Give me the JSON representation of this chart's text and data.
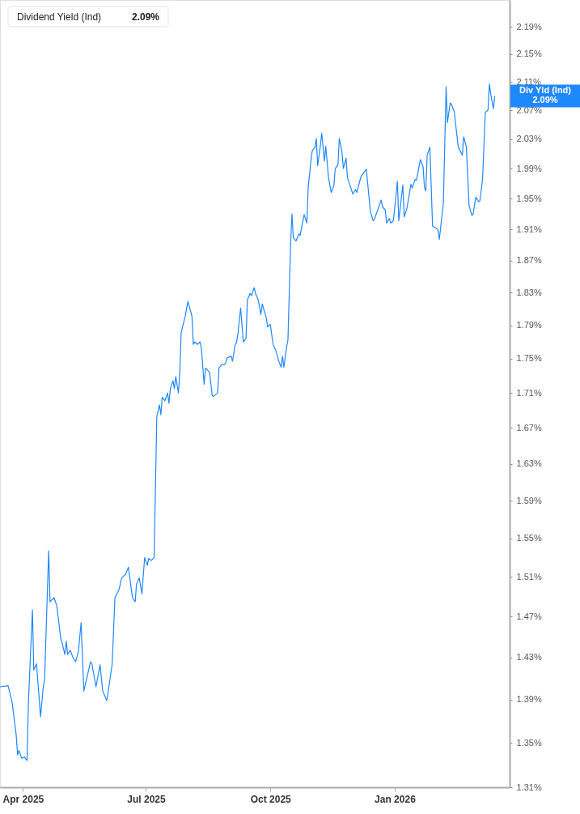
{
  "chart_data": {
    "type": "line",
    "title": "Dividend Yield (Ind)",
    "subtitle": "2.09%",
    "x": [
      "2025-03-15",
      "2025-03-21",
      "2025-03-24",
      "2025-03-27",
      "2025-03-28",
      "2025-03-29",
      "2025-03-31",
      "2025-04-02",
      "2025-04-04",
      "2025-04-05",
      "2025-04-08",
      "2025-04-09",
      "2025-04-11",
      "2025-04-14",
      "2025-04-16",
      "2025-04-17",
      "2025-04-20",
      "2025-04-21",
      "2025-04-24",
      "2025-04-26",
      "2025-04-29",
      "2025-04-30",
      "2025-05-02",
      "2025-05-03",
      "2025-05-04",
      "2025-05-06",
      "2025-05-08",
      "2025-05-10",
      "2025-05-12",
      "2025-05-14",
      "2025-05-16",
      "2025-05-18",
      "2025-05-21",
      "2025-05-22",
      "2025-05-25",
      "2025-05-28",
      "2025-05-30",
      "2025-06-02",
      "2025-06-04",
      "2025-06-06",
      "2025-06-08",
      "2025-06-11",
      "2025-06-13",
      "2025-06-16",
      "2025-06-18",
      "2025-06-21",
      "2025-06-23",
      "2025-06-24",
      "2025-06-26",
      "2025-06-28",
      "2025-06-30",
      "2025-07-02",
      "2025-07-03",
      "2025-07-05",
      "2025-07-07",
      "2025-07-09",
      "2025-07-11",
      "2025-07-12",
      "2025-07-13",
      "2025-07-15",
      "2025-07-17",
      "2025-07-18",
      "2025-07-19",
      "2025-07-21",
      "2025-07-22",
      "2025-07-23",
      "2025-07-25",
      "2025-07-26",
      "2025-07-27",
      "2025-07-30",
      "2025-08-01",
      "2025-08-04",
      "2025-08-05",
      "2025-08-06",
      "2025-08-08",
      "2025-08-10",
      "2025-08-11",
      "2025-08-13",
      "2025-08-14",
      "2025-08-17",
      "2025-08-19",
      "2025-08-20",
      "2025-08-23",
      "2025-08-24",
      "2025-08-26",
      "2025-08-28",
      "2025-08-29",
      "2025-08-30",
      "2025-09-02",
      "2025-09-03",
      "2025-09-05",
      "2025-09-06",
      "2025-09-07",
      "2025-09-09",
      "2025-09-11",
      "2025-09-13",
      "2025-09-14",
      "2025-09-16",
      "2025-09-17",
      "2025-09-19",
      "2025-09-20",
      "2025-09-22",
      "2025-09-24",
      "2025-09-25",
      "2025-09-28",
      "2025-09-29",
      "2025-10-01",
      "2025-10-03",
      "2025-10-05",
      "2025-10-07",
      "2025-10-09",
      "2025-10-10",
      "2025-10-11",
      "2025-10-13",
      "2025-10-14",
      "2025-10-16",
      "2025-10-17",
      "2025-10-18",
      "2025-10-20",
      "2025-10-22",
      "2025-10-23",
      "2025-10-26",
      "2025-10-28",
      "2025-10-29",
      "2025-10-31",
      "2025-11-01",
      "2025-11-03",
      "2025-11-04",
      "2025-11-05",
      "2025-11-07",
      "2025-11-08",
      "2025-11-10",
      "2025-11-11",
      "2025-11-13",
      "2025-11-15",
      "2025-11-17",
      "2025-11-18",
      "2025-11-20",
      "2025-11-21",
      "2025-11-23",
      "2025-11-24",
      "2025-11-26",
      "2025-11-27",
      "2025-12-01",
      "2025-12-03",
      "2025-12-04",
      "2025-12-07",
      "2025-12-11",
      "2025-12-14",
      "2025-12-16",
      "2025-12-17",
      "2025-12-22",
      "2025-12-23",
      "2025-12-25",
      "2025-12-26",
      "2025-12-28",
      "2025-12-29",
      "2025-12-31",
      "2026-01-03",
      "2026-01-04",
      "2026-01-07",
      "2026-01-08",
      "2026-01-10",
      "2026-01-13",
      "2026-01-14",
      "2026-01-16",
      "2026-01-17",
      "2026-01-20",
      "2026-01-22",
      "2026-01-23",
      "2026-01-24",
      "2026-01-25",
      "2026-01-27",
      "2026-01-29",
      "2026-02-01",
      "2026-02-02",
      "2026-02-03",
      "2026-02-06",
      "2026-02-08",
      "2026-02-09",
      "2026-02-11",
      "2026-02-12",
      "2026-02-14",
      "2026-02-17",
      "2026-02-20",
      "2026-02-21",
      "2026-02-23",
      "2026-02-25",
      "2026-02-27",
      "2026-02-28",
      "2026-03-02",
      "2026-03-04",
      "2026-03-05",
      "2026-03-07",
      "2026-03-09",
      "2026-03-11",
      "2026-03-12",
      "2026-03-13",
      "2026-03-15",
      "2026-03-16"
    ],
    "series": [
      {
        "color": "#1e88ff",
        "values": [
          1.402,
          1.403,
          1.387,
          1.357,
          1.339,
          1.343,
          1.336,
          1.337,
          1.334,
          1.387,
          1.477,
          1.418,
          1.424,
          1.374,
          1.402,
          1.409,
          1.537,
          1.485,
          1.489,
          1.481,
          1.448,
          1.444,
          1.433,
          1.446,
          1.433,
          1.437,
          1.43,
          1.426,
          1.436,
          1.464,
          1.398,
          1.409,
          1.426,
          1.424,
          1.402,
          1.423,
          1.398,
          1.389,
          1.406,
          1.424,
          1.489,
          1.497,
          1.509,
          1.513,
          1.52,
          1.489,
          1.485,
          1.503,
          1.509,
          1.493,
          1.53,
          1.522,
          1.529,
          1.527,
          1.53,
          1.683,
          1.696,
          1.685,
          1.705,
          1.701,
          1.71,
          1.698,
          1.715,
          1.724,
          1.715,
          1.729,
          1.71,
          1.734,
          1.781,
          1.801,
          1.819,
          1.801,
          1.767,
          1.77,
          1.767,
          1.77,
          1.762,
          1.72,
          1.739,
          1.734,
          1.707,
          1.706,
          1.71,
          1.739,
          1.743,
          1.743,
          1.745,
          1.751,
          1.753,
          1.747,
          1.767,
          1.769,
          1.78,
          1.811,
          1.77,
          1.774,
          1.821,
          1.829,
          1.826,
          1.836,
          1.829,
          1.821,
          1.803,
          1.816,
          1.799,
          1.788,
          1.791,
          1.767,
          1.76,
          1.748,
          1.74,
          1.753,
          1.74,
          1.764,
          1.772,
          1.892,
          1.93,
          1.899,
          1.895,
          1.904,
          1.902,
          1.929,
          1.918,
          1.965,
          2.0,
          2.014,
          2.019,
          2.031,
          1.994,
          2.021,
          2.038,
          2.0,
          2.02,
          1.978,
          1.958,
          1.967,
          1.99,
          1.995,
          2.031,
          2.012,
          1.99,
          2.004,
          1.978,
          1.956,
          1.962,
          1.958,
          1.979,
          1.989,
          1.933,
          1.921,
          1.923,
          1.948,
          1.939,
          1.935,
          1.918,
          1.924,
          1.918,
          1.921,
          1.973,
          1.921,
          1.968,
          1.926,
          1.937,
          1.969,
          1.964,
          1.975,
          1.974,
          2.002,
          1.992,
          1.965,
          1.96,
          2.008,
          2.019,
          1.914,
          1.911,
          1.909,
          1.897,
          1.944,
          2.103,
          2.053,
          2.08,
          2.078,
          2.068,
          2.019,
          2.008,
          2.033,
          2.019,
          1.941,
          1.928,
          1.93,
          1.952,
          1.946,
          1.947,
          1.976,
          2.067,
          2.07,
          2.107,
          2.093,
          2.072,
          2.09
        ]
      }
    ],
    "log": "y",
    "ylim": [
      1.31,
      2.23
    ],
    "yticks": [
      {
        "value": 1.31,
        "label": "1.31%"
      },
      {
        "value": 1.35,
        "label": "1.35%"
      },
      {
        "value": 1.39,
        "label": "1.39%"
      },
      {
        "value": 1.43,
        "label": "1.43%"
      },
      {
        "value": 1.47,
        "label": "1.47%"
      },
      {
        "value": 1.51,
        "label": "1.51%"
      },
      {
        "value": 1.55,
        "label": "1.55%"
      },
      {
        "value": 1.59,
        "label": "1.59%"
      },
      {
        "value": 1.63,
        "label": "1.63%"
      },
      {
        "value": 1.67,
        "label": "1.67%"
      },
      {
        "value": 1.71,
        "label": "1.71%"
      },
      {
        "value": 1.75,
        "label": "1.75%"
      },
      {
        "value": 1.79,
        "label": "1.79%"
      },
      {
        "value": 1.83,
        "label": "1.83%"
      },
      {
        "value": 1.87,
        "label": "1.87%"
      },
      {
        "value": 1.91,
        "label": "1.91%"
      },
      {
        "value": 1.95,
        "label": "1.95%"
      },
      {
        "value": 1.99,
        "label": "1.99%"
      },
      {
        "value": 2.03,
        "label": "2.03%"
      },
      {
        "value": 2.07,
        "label": "2.07%"
      },
      {
        "value": 2.11,
        "label": "2.11%"
      },
      {
        "value": 2.15,
        "label": "2.15%"
      },
      {
        "value": 2.19,
        "label": "2.19%"
      }
    ],
    "xlim": [
      "2025-03-15",
      "2026-03-27"
    ],
    "xticks": [
      {
        "value": "2025-04-01",
        "label": "Apr 2025"
      },
      {
        "value": "2025-07-01",
        "label": "Jul 2025"
      },
      {
        "value": "2025-10-01",
        "label": "Oct 2025"
      },
      {
        "value": "2026-01-01",
        "label": "Jan 2026"
      }
    ],
    "annotations": [
      "Div Yld (Ind)",
      "2.09%"
    ],
    "grid": false,
    "marker": "none",
    "line_style": "solid"
  }
}
